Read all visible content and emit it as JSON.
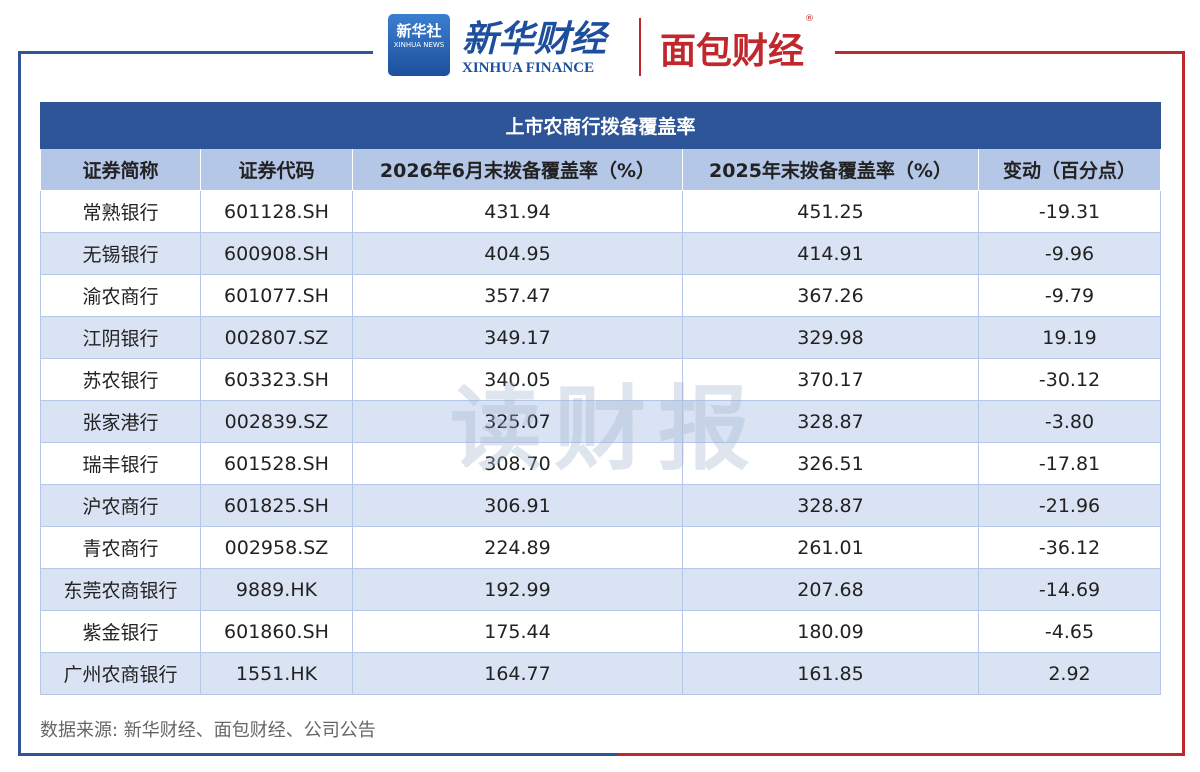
{
  "header": {
    "logo_cn": "新华社",
    "logo_en": "XINHUA NEWS",
    "brand_cn": "新华财经",
    "brand_en": "XINHUA FINANCE",
    "partner": "面包财经",
    "registered": "®"
  },
  "watermark": "读财报",
  "table": {
    "title": "上市农商行拨备覆盖率",
    "columns": [
      "证券简称",
      "证券代码",
      "2026年6月末拨备覆盖率（%）",
      "2025年末拨备覆盖率（%）",
      "变动（百分点）"
    ],
    "rows": [
      [
        "常熟银行",
        "601128.SH",
        "431.94",
        "451.25",
        "-19.31"
      ],
      [
        "无锡银行",
        "600908.SH",
        "404.95",
        "414.91",
        "-9.96"
      ],
      [
        "渝农商行",
        "601077.SH",
        "357.47",
        "367.26",
        "-9.79"
      ],
      [
        "江阴银行",
        "002807.SZ",
        "349.17",
        "329.98",
        "19.19"
      ],
      [
        "苏农银行",
        "603323.SH",
        "340.05",
        "370.17",
        "-30.12"
      ],
      [
        "张家港行",
        "002839.SZ",
        "325.07",
        "328.87",
        "-3.80"
      ],
      [
        "瑞丰银行",
        "601528.SH",
        "308.70",
        "326.51",
        "-17.81"
      ],
      [
        "沪农商行",
        "601825.SH",
        "306.91",
        "328.87",
        "-21.96"
      ],
      [
        "青农商行",
        "002958.SZ",
        "224.89",
        "261.01",
        "-36.12"
      ],
      [
        "东莞农商银行",
        "9889.HK",
        "192.99",
        "207.68",
        "-14.69"
      ],
      [
        "紫金银行",
        "601860.SH",
        "175.44",
        "180.09",
        "-4.65"
      ],
      [
        "广州农商银行",
        "1551.HK",
        "164.77",
        "161.85",
        "2.92"
      ]
    ]
  },
  "source": "数据来源: 新华财经、面包财经、公司公告"
}
